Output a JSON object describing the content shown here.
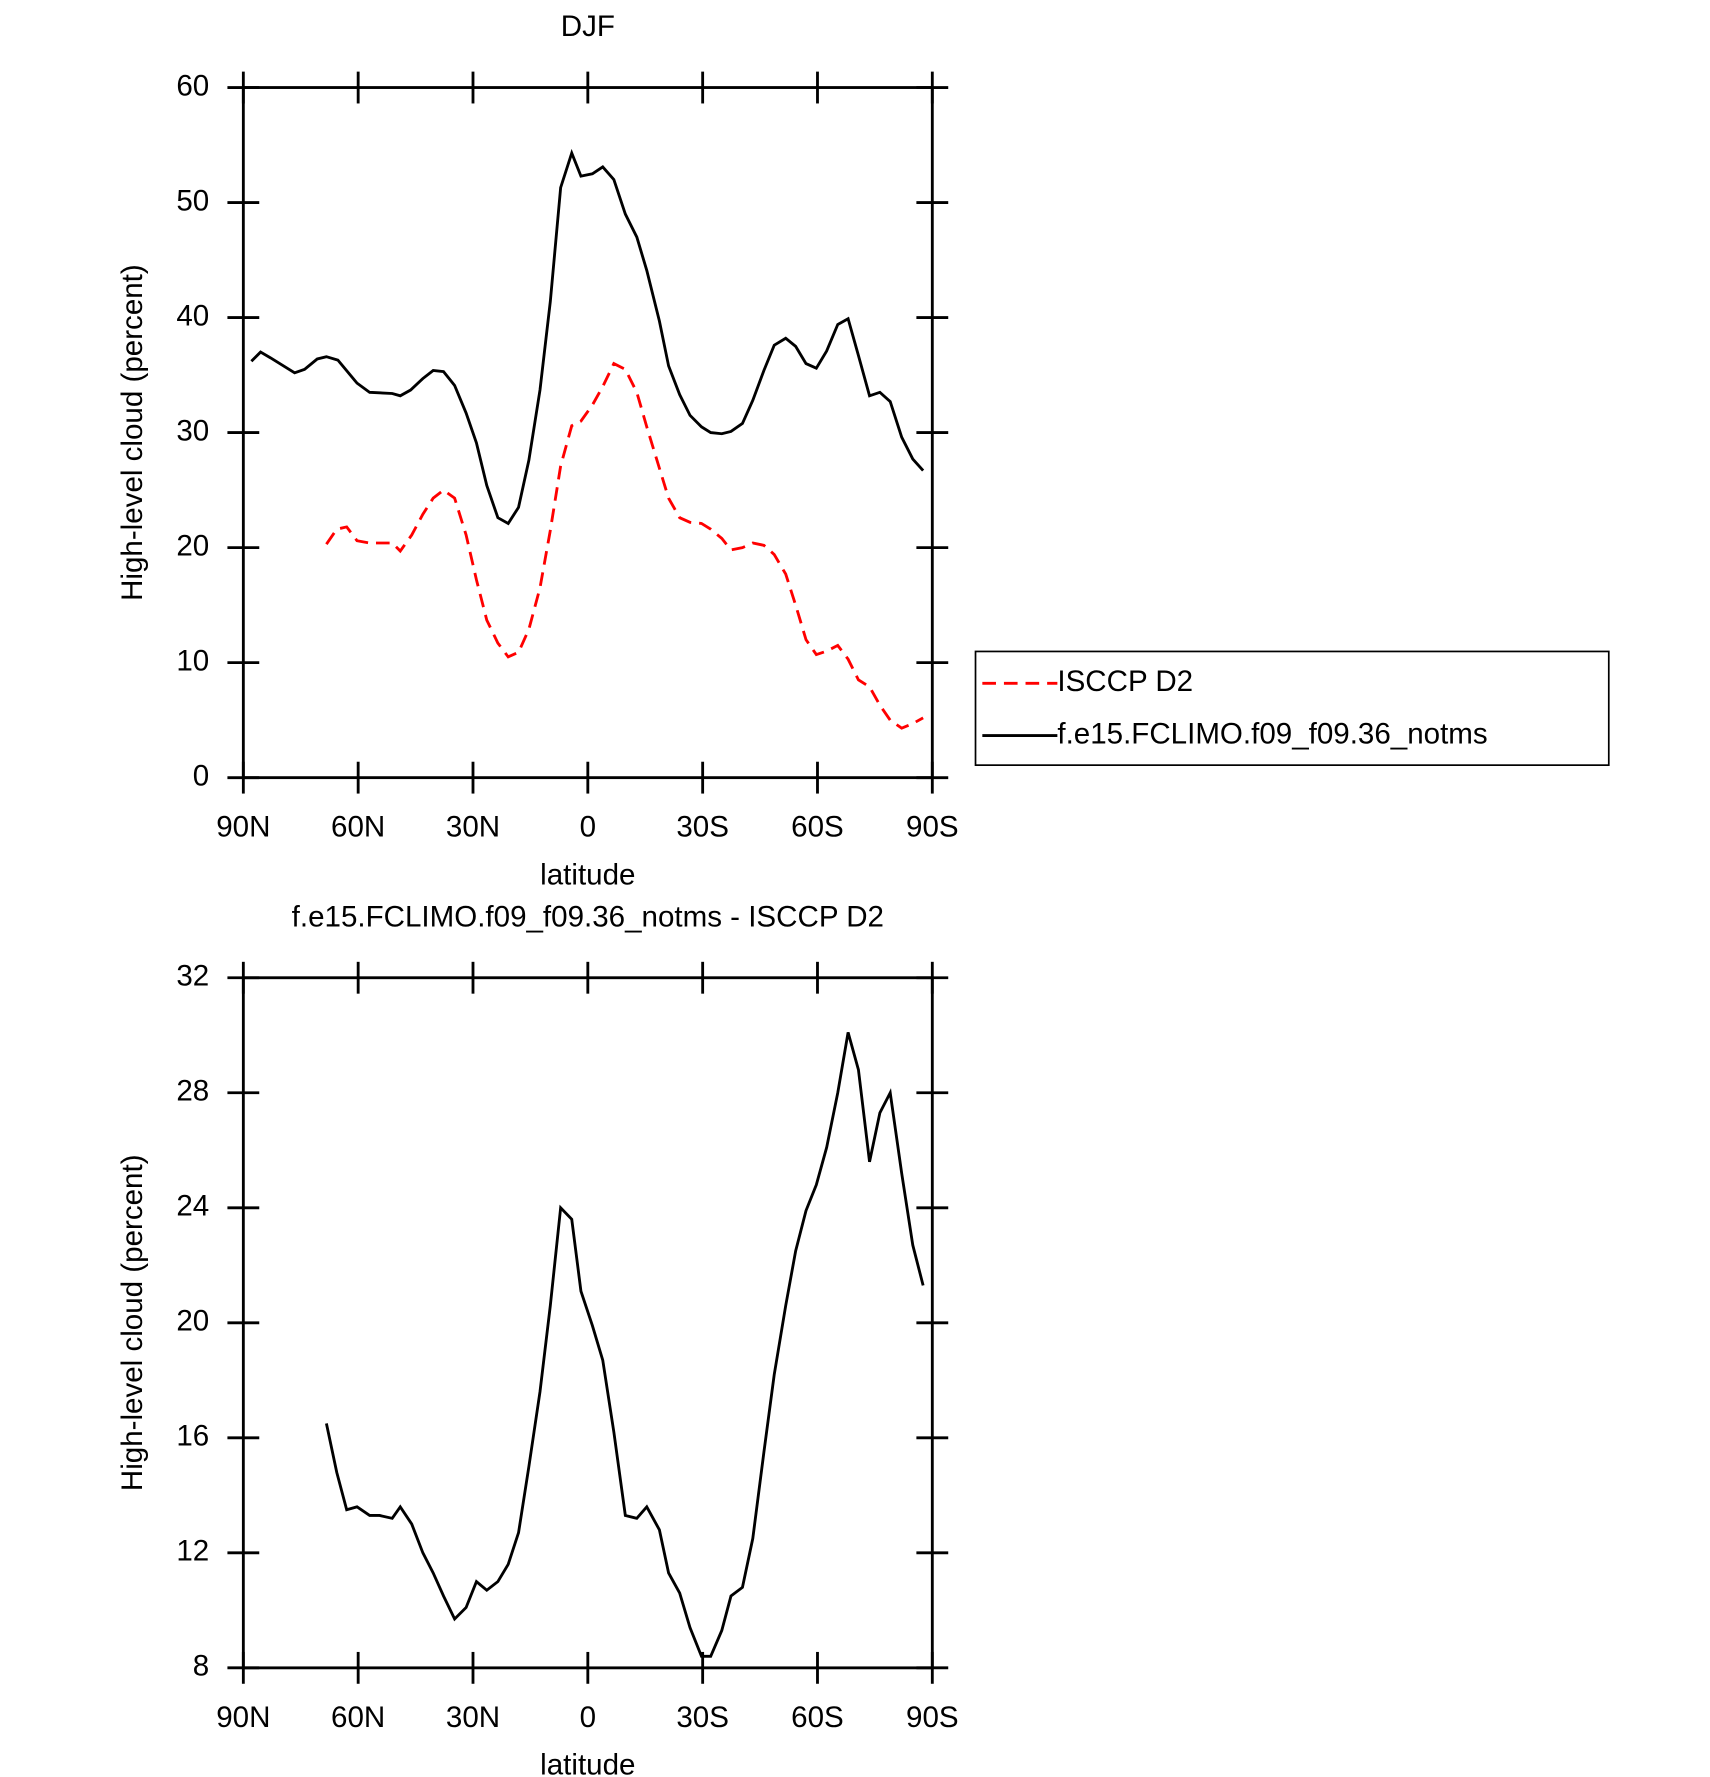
{
  "chart_data": [
    {
      "type": "line",
      "title": "DJF",
      "xlabel": "latitude",
      "ylabel": "High-level cloud (percent)",
      "xlim": [
        90,
        -90
      ],
      "xticks": [
        {
          "value": 90,
          "label": "90N"
        },
        {
          "value": 60,
          "label": "60N"
        },
        {
          "value": 30,
          "label": "30N"
        },
        0,
        {
          "value": -30,
          "label": "30S"
        },
        {
          "value": -60,
          "label": "60S"
        },
        {
          "value": -90,
          "label": "90S"
        }
      ],
      "ylim": [
        0,
        60
      ],
      "yticks": [
        0,
        10,
        20,
        30,
        40,
        50,
        60
      ],
      "legend": "right",
      "series": [
        {
          "name": "ISCCP D2",
          "color": "#ff0000",
          "style": "dashed",
          "x": [
            68.3,
            65.6,
            63.0,
            60.3,
            57.0,
            51.1,
            49.0,
            46.0,
            43.1,
            40.4,
            37.7,
            34.8,
            31.8,
            29.1,
            26.4,
            23.5,
            20.8,
            18.1,
            15.4,
            12.5,
            9.8,
            7.1,
            4.2,
            1.8,
            -1.2,
            -3.9,
            -6.8,
            -9.8,
            -12.8,
            -15.4,
            -18.7,
            -21.1,
            -24.0,
            -26.7,
            -29.7,
            -32.1,
            -35.0,
            -37.4,
            -40.4,
            -43.1,
            -46.0,
            -48.7,
            -51.7,
            -54.3,
            -57.0,
            -59.7,
            -62.4,
            -65.3,
            -68.0,
            -70.7,
            -73.6,
            -76.3,
            -79.0,
            -82.0,
            -84.9,
            -87.6
          ],
          "values": [
            20.3,
            21.6,
            21.8,
            20.6,
            20.4,
            20.4,
            19.7,
            21.1,
            22.9,
            24.3,
            25.0,
            24.3,
            21.1,
            17.2,
            13.7,
            11.7,
            10.5,
            10.9,
            12.9,
            16.5,
            21.5,
            27.1,
            30.6,
            31.0,
            32.4,
            34.0,
            36.0,
            35.5,
            33.5,
            30.5,
            26.9,
            24.3,
            22.6,
            22.2,
            22.1,
            21.6,
            20.8,
            19.8,
            20.0,
            20.4,
            20.2,
            19.4,
            17.7,
            15.0,
            12.0,
            10.7,
            11.0,
            11.5,
            10.3,
            8.5,
            7.9,
            6.3,
            5.0,
            4.3,
            4.7,
            5.2
          ]
        },
        {
          "name": "f.e15.FCLIMO.f09_f09.36_notms",
          "color": "#000000",
          "style": "solid",
          "x": [
            87.9,
            85.5,
            82.9,
            76.6,
            74.0,
            70.7,
            68.3,
            65.3,
            60.3,
            57.0,
            51.1,
            49.0,
            46.3,
            43.1,
            40.4,
            37.7,
            34.8,
            31.8,
            29.1,
            26.4,
            23.5,
            20.8,
            18.1,
            15.4,
            12.5,
            9.8,
            7.1,
            4.2,
            1.8,
            -1.2,
            -3.9,
            -6.8,
            -9.8,
            -12.8,
            -15.4,
            -18.7,
            -21.1,
            -24.0,
            -26.7,
            -29.7,
            -32.1,
            -35.0,
            -37.4,
            -40.4,
            -43.1,
            -46.0,
            -48.7,
            -51.7,
            -54.3,
            -57.0,
            -59.7,
            -62.4,
            -65.3,
            -68.0,
            -70.7,
            -73.6,
            -76.3,
            -79.0,
            -82.0,
            -84.9,
            -87.6
          ],
          "values": [
            36.2,
            37.0,
            36.5,
            35.2,
            35.5,
            36.4,
            36.6,
            36.3,
            34.3,
            33.5,
            33.4,
            33.2,
            33.7,
            34.7,
            35.4,
            35.3,
            34.1,
            31.7,
            29.1,
            25.4,
            22.6,
            22.1,
            23.5,
            27.6,
            33.7,
            41.4,
            51.3,
            54.3,
            52.3,
            52.5,
            53.1,
            52.0,
            49.0,
            47.0,
            44.1,
            39.7,
            35.8,
            33.3,
            31.5,
            30.5,
            30.0,
            29.9,
            30.1,
            30.8,
            32.8,
            35.4,
            37.6,
            38.2,
            37.5,
            36.0,
            35.6,
            37.1,
            39.4,
            39.9,
            36.7,
            33.2,
            33.5,
            32.7,
            29.6,
            27.7,
            26.7
          ]
        }
      ]
    },
    {
      "type": "line",
      "title": "f.e15.FCLIMO.f09_f09.36_notms - ISCCP D2",
      "xlabel": "latitude",
      "ylabel": "High-level cloud (percent)",
      "xlim": [
        90,
        -90
      ],
      "xticks": [
        {
          "value": 90,
          "label": "90N"
        },
        {
          "value": 60,
          "label": "60N"
        },
        {
          "value": 30,
          "label": "30N"
        },
        0,
        {
          "value": -30,
          "label": "30S"
        },
        {
          "value": -60,
          "label": "60S"
        },
        {
          "value": -90,
          "label": "90S"
        }
      ],
      "ylim": [
        8,
        32
      ],
      "yticks": [
        8,
        12,
        16,
        20,
        24,
        28,
        32
      ],
      "series": [
        {
          "color": "#000000",
          "style": "solid",
          "x": [
            68.3,
            65.6,
            63.0,
            60.3,
            57.0,
            54.4,
            51.1,
            49.0,
            46.0,
            43.1,
            40.4,
            37.7,
            34.8,
            31.8,
            29.1,
            26.4,
            23.5,
            20.8,
            18.1,
            15.4,
            12.5,
            9.8,
            7.1,
            4.2,
            1.8,
            -1.2,
            -3.9,
            -6.8,
            -9.8,
            -12.8,
            -15.4,
            -18.7,
            -21.1,
            -24.0,
            -26.7,
            -29.7,
            -32.1,
            -35.0,
            -37.4,
            -40.4,
            -43.1,
            -46.0,
            -48.7,
            -51.7,
            -54.3,
            -57.0,
            -59.7,
            -62.4,
            -65.3,
            -68.0,
            -70.7,
            -73.6,
            -76.3,
            -79.0,
            -82.0,
            -84.9,
            -87.6
          ],
          "values": [
            16.5,
            14.8,
            13.5,
            13.6,
            13.3,
            13.3,
            13.2,
            13.6,
            13.0,
            12.0,
            11.3,
            10.5,
            9.7,
            10.1,
            11.0,
            10.7,
            11.0,
            11.6,
            12.7,
            15.0,
            17.6,
            20.6,
            24.0,
            23.6,
            21.1,
            19.9,
            18.7,
            16.2,
            13.3,
            13.2,
            13.6,
            12.8,
            11.3,
            10.6,
            9.4,
            8.4,
            8.4,
            9.3,
            10.5,
            10.8,
            12.5,
            15.5,
            18.2,
            20.6,
            22.5,
            23.9,
            24.8,
            26.1,
            28.0,
            30.1,
            28.8,
            25.6,
            27.3,
            28.0,
            25.2,
            22.7,
            21.3
          ]
        }
      ]
    }
  ]
}
